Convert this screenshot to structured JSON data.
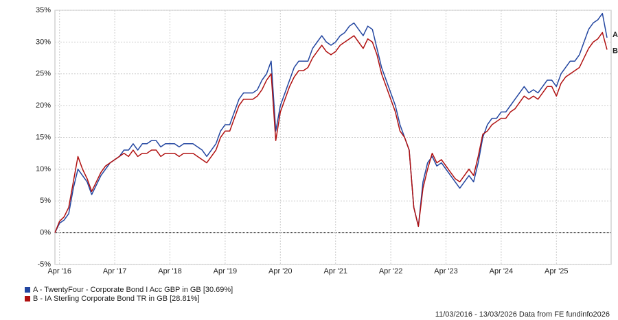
{
  "chart_data": {
    "type": "line",
    "footer": "11/03/2016 - 13/03/2026 Data from FE fundinfo2026",
    "x": [
      "2016-03",
      "2016-04",
      "2016-05",
      "2016-06",
      "2016-07",
      "2016-08",
      "2016-09",
      "2016-10",
      "2016-11",
      "2016-12",
      "2017-01",
      "2017-02",
      "2017-03",
      "2017-04",
      "2017-05",
      "2017-06",
      "2017-07",
      "2017-08",
      "2017-09",
      "2017-10",
      "2017-11",
      "2017-12",
      "2018-01",
      "2018-02",
      "2018-03",
      "2018-04",
      "2018-05",
      "2018-06",
      "2018-07",
      "2018-08",
      "2018-09",
      "2018-10",
      "2018-11",
      "2018-12",
      "2019-01",
      "2019-02",
      "2019-03",
      "2019-04",
      "2019-05",
      "2019-06",
      "2019-07",
      "2019-08",
      "2019-09",
      "2019-10",
      "2019-11",
      "2019-12",
      "2020-01",
      "2020-02",
      "2020-03",
      "2020-04",
      "2020-05",
      "2020-06",
      "2020-07",
      "2020-08",
      "2020-09",
      "2020-10",
      "2020-11",
      "2020-12",
      "2021-01",
      "2021-02",
      "2021-03",
      "2021-04",
      "2021-05",
      "2021-06",
      "2021-07",
      "2021-08",
      "2021-09",
      "2021-10",
      "2021-11",
      "2021-12",
      "2022-01",
      "2022-02",
      "2022-03",
      "2022-04",
      "2022-05",
      "2022-06",
      "2022-07",
      "2022-08",
      "2022-09",
      "2022-10",
      "2022-11",
      "2022-12",
      "2023-01",
      "2023-02",
      "2023-03",
      "2023-04",
      "2023-05",
      "2023-06",
      "2023-07",
      "2023-08",
      "2023-09",
      "2023-10",
      "2023-11",
      "2023-12",
      "2024-01",
      "2024-02",
      "2024-03",
      "2024-04",
      "2024-05",
      "2024-06",
      "2024-07",
      "2024-08",
      "2024-09",
      "2024-10",
      "2024-11",
      "2024-12",
      "2025-01",
      "2025-02",
      "2025-03",
      "2025-04",
      "2025-05",
      "2025-06",
      "2025-07",
      "2025-08",
      "2025-09",
      "2025-10",
      "2025-11",
      "2025-12",
      "2026-01",
      "2026-02",
      "2026-03"
    ],
    "series": [
      {
        "name": "A - TwentyFour - Corporate Bond I Acc GBP in GB [30.69%]",
        "short": "A",
        "color": "#2346a0",
        "values": [
          0,
          1.5,
          2,
          3,
          7,
          10,
          9,
          8,
          6,
          7.5,
          9,
          10,
          11,
          11.5,
          12,
          13,
          13,
          14,
          13,
          14,
          14,
          14.5,
          14.5,
          13.5,
          14,
          14,
          14,
          13.5,
          14,
          14,
          14,
          13.5,
          13,
          12,
          13,
          14,
          16,
          17,
          17,
          19,
          21,
          22,
          22,
          22,
          22.5,
          24,
          25,
          27,
          16,
          20,
          22,
          24,
          26,
          27,
          27,
          27,
          29,
          30,
          31,
          30,
          29.5,
          30,
          31,
          31.5,
          32.5,
          33,
          32,
          31,
          32.5,
          32,
          29,
          26,
          24,
          22,
          20,
          17,
          15,
          13,
          4,
          1,
          8,
          11,
          12,
          10.5,
          11,
          10,
          9,
          8,
          7,
          8,
          9,
          8,
          11,
          15,
          17,
          18,
          18,
          19,
          19,
          20,
          21,
          22,
          23,
          22,
          22.5,
          22,
          23,
          24,
          24,
          23,
          25,
          26,
          27,
          27,
          28,
          30,
          32,
          33,
          33.5,
          34.5,
          30.69
        ]
      },
      {
        "name": "B - IA Sterling Corporate Bond TR in GB [28.81%]",
        "short": "B",
        "color": "#b01010",
        "values": [
          0,
          1.8,
          2.5,
          4,
          8,
          12,
          10,
          8.5,
          6.5,
          8,
          9.5,
          10.5,
          11,
          11.5,
          12,
          12.5,
          12,
          13,
          12,
          12.5,
          12.5,
          13,
          13,
          12,
          12.5,
          12.5,
          12.5,
          12,
          12.5,
          12.5,
          12.5,
          12,
          11.5,
          11,
          12,
          13,
          15,
          16,
          16,
          18,
          20,
          21,
          21,
          21,
          21.5,
          22.5,
          24,
          25,
          14.5,
          19,
          21,
          23,
          24.5,
          25.5,
          25.5,
          26,
          27.5,
          28.5,
          29.5,
          28.5,
          28,
          28.5,
          29.5,
          30,
          30.5,
          31,
          30,
          29,
          30.5,
          30,
          28,
          25,
          23,
          21,
          19,
          16,
          15,
          13,
          4,
          1,
          7,
          10,
          12.5,
          11,
          11.5,
          10.5,
          9.5,
          8.5,
          8,
          9,
          10,
          9,
          12,
          15.5,
          16,
          17,
          17.5,
          18,
          18,
          19,
          19.5,
          20.5,
          21.5,
          21,
          21.5,
          21,
          22,
          23,
          23,
          21.5,
          23.5,
          24.5,
          25,
          25.5,
          26,
          27.5,
          29,
          30,
          30.5,
          31.5,
          28.81
        ]
      }
    ],
    "xlim": [
      "2016-03",
      "2026-03"
    ],
    "xticks": [
      {
        "value": "2016-04",
        "label": "Apr '16"
      },
      {
        "value": "2017-04",
        "label": "Apr '17"
      },
      {
        "value": "2018-04",
        "label": "Apr '18"
      },
      {
        "value": "2019-04",
        "label": "Apr '19"
      },
      {
        "value": "2020-04",
        "label": "Apr '20"
      },
      {
        "value": "2021-04",
        "label": "Apr '21"
      },
      {
        "value": "2022-04",
        "label": "Apr '22"
      },
      {
        "value": "2023-04",
        "label": "Apr '23"
      },
      {
        "value": "2024-04",
        "label": "Apr '24"
      },
      {
        "value": "2025-04",
        "label": "Apr '25"
      }
    ],
    "ylim": [
      -5,
      35
    ],
    "yticks": [
      {
        "value": -5,
        "label": "-5%"
      },
      {
        "value": 0,
        "label": "0%"
      },
      {
        "value": 5,
        "label": "5%"
      },
      {
        "value": 10,
        "label": "10%"
      },
      {
        "value": 15,
        "label": "15%"
      },
      {
        "value": 20,
        "label": "20%"
      },
      {
        "value": 25,
        "label": "25%"
      },
      {
        "value": 30,
        "label": "30%"
      },
      {
        "value": 35,
        "label": "35%"
      }
    ],
    "grid": true
  }
}
